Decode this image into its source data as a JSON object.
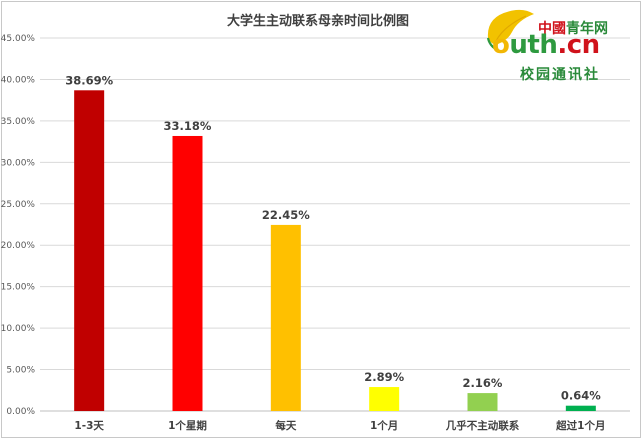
{
  "logo": {
    "brand_cn": "中國",
    "brand_name": "青年网",
    "domain_o": "o",
    "domain_uth": "uth",
    "domain_cn": ".cn",
    "tagline": "校园通讯社"
  },
  "chart_data": {
    "type": "bar",
    "title": "大学生主动联系母亲时间比例图",
    "xlabel": "",
    "ylabel": "",
    "categories": [
      "1-3天",
      "1个星期",
      "每天",
      "1个月",
      "几乎不主动联系",
      "超过1个月"
    ],
    "values": [
      38.69,
      33.18,
      22.45,
      2.89,
      2.16,
      0.64
    ],
    "data_labels": [
      "38.69%",
      "33.18%",
      "22.45%",
      "2.89%",
      "2.16%",
      "0.64%"
    ],
    "bar_colors": [
      "#c00000",
      "#ff0000",
      "#ffc000",
      "#ffff00",
      "#92d050",
      "#00b050"
    ],
    "ylim": [
      0,
      45
    ],
    "yticks": [
      0,
      5,
      10,
      15,
      20,
      25,
      30,
      35,
      40,
      45
    ],
    "ytick_labels": [
      "0.00%",
      "5.00%",
      "10.00%",
      "15.00%",
      "20.00%",
      "25.00%",
      "30.00%",
      "35.00%",
      "40.00%",
      "45.00%"
    ],
    "grid": true,
    "legend": "none"
  }
}
